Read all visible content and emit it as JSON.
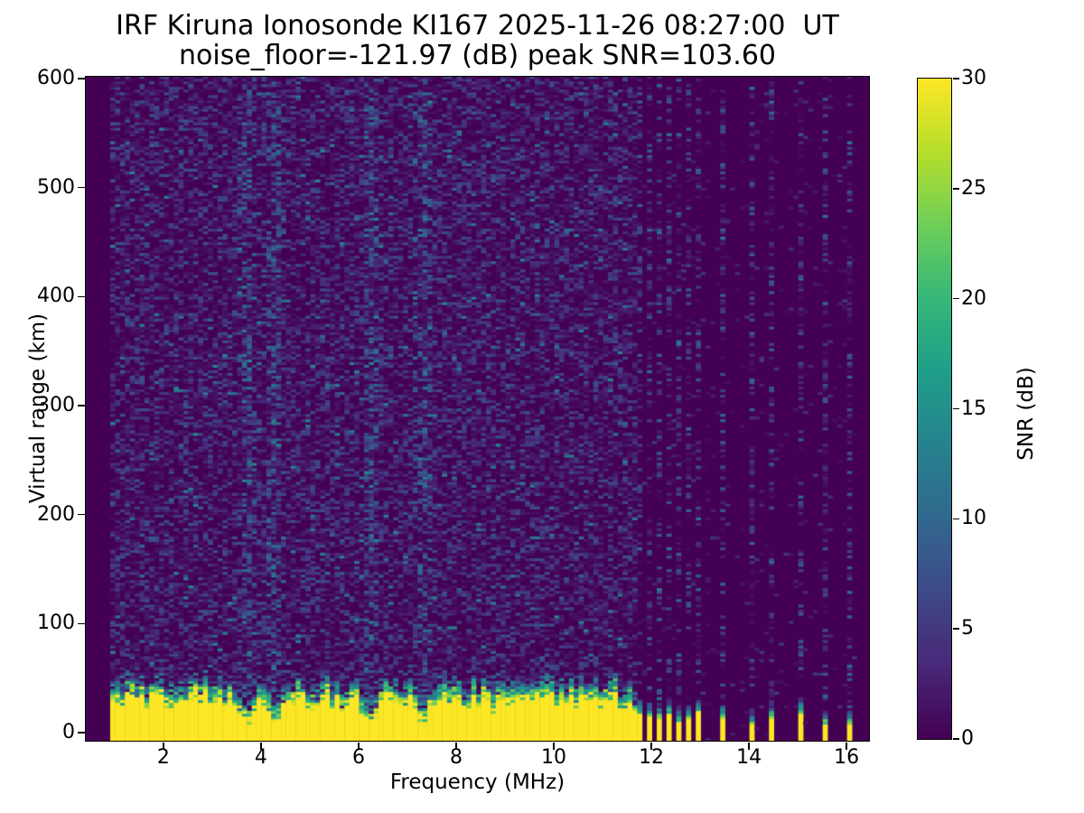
{
  "chart_data": {
    "type": "heatmap",
    "title": "IRF Kiruna Ionosonde KI167 2025-11-26 08:27:00  UT",
    "subtitle": "noise_floor=-121.97 (dB) peak SNR=103.60",
    "xlabel": "Frequency (MHz)",
    "ylabel": "Virtual range (km)",
    "xlim": [
      0.41,
      16.46
    ],
    "ylim": [
      -7.5,
      601.7
    ],
    "xticks": [
      2,
      4,
      6,
      8,
      10,
      12,
      14,
      16
    ],
    "yticks": [
      0,
      100,
      200,
      300,
      400,
      500,
      600
    ],
    "colorbar": {
      "label": "SNR (dB)",
      "ticks": [
        0,
        5,
        10,
        15,
        20,
        25,
        30
      ],
      "vmin": 0,
      "vmax": 30
    },
    "colormap": "viridis",
    "colormap_stops": [
      [
        0.0,
        "#440154"
      ],
      [
        0.111,
        "#482878"
      ],
      [
        0.222,
        "#3e4989"
      ],
      [
        0.333,
        "#31688e"
      ],
      [
        0.444,
        "#26828e"
      ],
      [
        0.556,
        "#1f9e89"
      ],
      [
        0.667,
        "#35b779"
      ],
      [
        0.778,
        "#6ece58"
      ],
      [
        0.889,
        "#b5de2b"
      ],
      [
        1.0,
        "#fde725"
      ]
    ],
    "background_color": "#ffffff",
    "spine_color": "#000000",
    "text_color": "#000000",
    "grid": false,
    "data_freq_range_mhz": [
      0.91,
      16.18
    ],
    "freq_step_mhz": 0.1,
    "range_step_km": 2.5,
    "ground_band": {
      "freq_range_mhz": [
        0.91,
        11.62
      ],
      "top_km_mean": 32,
      "top_km_jitter": 8,
      "transition_km": 15,
      "notches_mhz": [
        3.68,
        4.22,
        6.22,
        7.28
      ],
      "notch_width_mhz": 0.15,
      "notch_top_km": 11
    },
    "interference_stripes_mhz": [
      11.7,
      11.89,
      12.07,
      12.3,
      12.48,
      12.69,
      12.87,
      13.43,
      13.96,
      14.44,
      14.98,
      15.46,
      15.96
    ],
    "stripe_top_km_range": [
      10,
      24
    ],
    "noise": {
      "speckle_density_main": 0.55,
      "speckle_density_quiet": 0.04,
      "speckle_density_stripe": 0.36,
      "typical_snr_db": [
        1,
        8
      ],
      "max_speckle_snr_db": 16
    },
    "seed": 20251126
  }
}
